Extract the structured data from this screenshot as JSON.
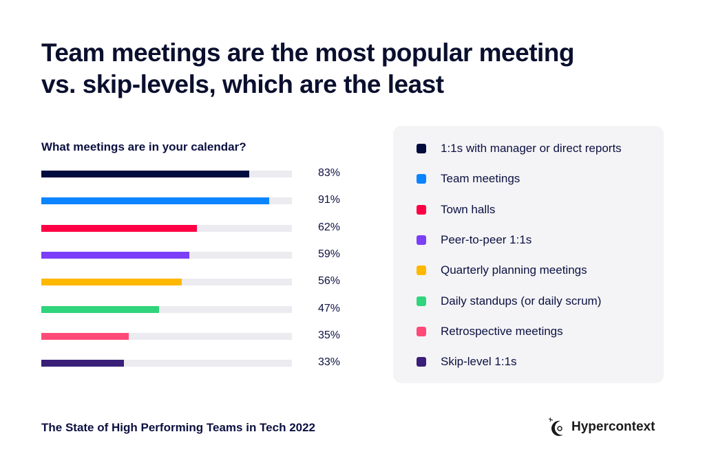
{
  "title_line1": "Team meetings are the most popular meeting",
  "title_line2": "vs. skip-levels, which are the least",
  "chart_data": {
    "type": "bar",
    "orientation": "horizontal",
    "title": "What meetings are in your calendar?",
    "categories": [
      "1:1s with manager or direct reports",
      "Team meetings",
      "Town halls",
      "Peer-to-peer 1:1s",
      "Quarterly planning meetings",
      "Daily standups (or daily scrum)",
      "Retrospective meetings",
      "Skip-level 1:1s"
    ],
    "values": [
      83,
      91,
      62,
      59,
      56,
      47,
      35,
      33
    ],
    "labels": [
      "83%",
      "91%",
      "62%",
      "59%",
      "56%",
      "47%",
      "35%",
      "33%"
    ],
    "colors": [
      "#000c3d",
      "#0a84ff",
      "#ff0044",
      "#7b3ff7",
      "#ffb800",
      "#2fd47b",
      "#ff4a78",
      "#3a1f78"
    ],
    "xlim": [
      0,
      100
    ],
    "legend_position": "right",
    "grid": false
  },
  "footer": "The State of High Performing Teams in Tech 2022",
  "brand": "Hypercontext"
}
